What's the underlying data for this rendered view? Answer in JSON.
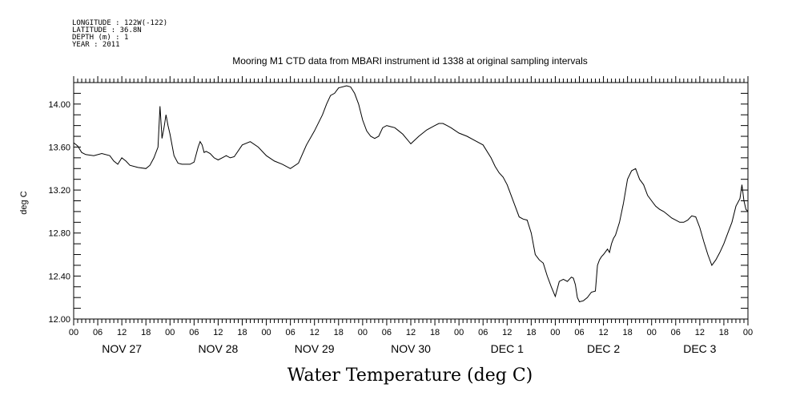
{
  "meta": {
    "longitude": "LONGITUDE : 122W(-122)",
    "latitude": "LATITUDE : 36.8N",
    "depth": "DEPTH (m) : 1",
    "year": "YEAR : 2011"
  },
  "chart_data": {
    "type": "line",
    "title": "Mooring M1 CTD data from MBARI instrument id 1338 at original sampling intervals",
    "xlabel": "Water Temperature (deg C)",
    "ylabel": "deg C",
    "xlim": [
      0,
      168
    ],
    "ylim": [
      12.0,
      14.2
    ],
    "yticks": [
      12.0,
      12.4,
      12.8,
      13.2,
      13.6,
      14.0
    ],
    "ytick_labels": [
      "12.00",
      "12.40",
      "12.80",
      "13.20",
      "13.60",
      "14.00"
    ],
    "xtick_hour_labels": [
      "00",
      "06",
      "12",
      "18",
      "00",
      "06",
      "12",
      "18",
      "00",
      "06",
      "12",
      "18",
      "00",
      "06",
      "12",
      "18",
      "00",
      "06",
      "12",
      "18",
      "00",
      "06",
      "12",
      "18",
      "00",
      "06",
      "12",
      "18",
      "00"
    ],
    "day_labels": [
      {
        "hour": 12,
        "label": "NOV 27"
      },
      {
        "hour": 36,
        "label": "NOV 28"
      },
      {
        "hour": 60,
        "label": "NOV 29"
      },
      {
        "hour": 84,
        "label": "NOV 30"
      },
      {
        "hour": 108,
        "label": "DEC  1"
      },
      {
        "hour": 132,
        "label": "DEC  2"
      },
      {
        "hour": 156,
        "label": "DEC  3"
      }
    ],
    "grid": false,
    "series": [
      {
        "x": [
          0,
          1,
          2,
          3,
          5,
          7,
          9,
          10,
          11,
          12,
          13,
          14,
          16,
          18,
          19,
          20,
          21,
          21.5,
          22,
          22.5,
          23,
          23.5,
          24,
          25,
          26,
          27,
          28,
          29,
          30,
          31,
          31.5,
          32,
          32.5,
          33,
          34,
          35,
          36,
          37,
          38,
          39,
          40,
          42,
          44,
          46,
          48,
          50,
          52,
          54,
          56,
          58,
          60,
          62,
          63,
          64,
          65,
          66,
          68,
          69,
          70,
          71,
          72,
          73,
          74,
          75,
          76,
          77,
          78,
          79,
          80,
          81,
          82,
          84,
          86,
          88,
          90,
          91,
          92,
          93,
          94,
          96,
          98,
          100,
          102,
          104,
          105,
          106,
          107,
          108,
          109,
          110,
          111,
          112,
          113,
          114,
          115,
          116,
          117,
          118,
          119,
          120,
          121,
          122,
          123,
          124,
          124.5,
          125,
          125.5,
          126,
          127,
          128,
          129,
          130,
          130.5,
          131,
          131.5,
          132,
          133,
          133.5,
          134,
          134.5,
          135,
          136,
          137,
          138,
          139,
          140,
          141,
          142,
          143,
          144,
          145,
          146,
          147,
          148,
          149,
          150,
          151,
          152,
          153,
          154,
          155,
          156,
          157,
          158,
          159,
          160,
          161,
          162,
          163,
          164,
          165,
          166,
          166.5,
          167,
          167.5,
          168
        ],
        "y": [
          13.64,
          13.61,
          13.55,
          13.53,
          13.52,
          13.54,
          13.52,
          13.47,
          13.44,
          13.5,
          13.47,
          13.43,
          13.41,
          13.4,
          13.43,
          13.5,
          13.6,
          13.98,
          13.68,
          13.78,
          13.9,
          13.8,
          13.72,
          13.52,
          13.45,
          13.44,
          13.44,
          13.44,
          13.46,
          13.6,
          13.65,
          13.62,
          13.55,
          13.56,
          13.54,
          13.5,
          13.48,
          13.5,
          13.52,
          13.5,
          13.51,
          13.62,
          13.65,
          13.6,
          13.52,
          13.47,
          13.44,
          13.4,
          13.45,
          13.62,
          13.75,
          13.9,
          14.0,
          14.08,
          14.1,
          14.15,
          14.17,
          14.16,
          14.1,
          14.0,
          13.85,
          13.75,
          13.7,
          13.68,
          13.7,
          13.78,
          13.8,
          13.79,
          13.78,
          13.75,
          13.72,
          13.63,
          13.7,
          13.76,
          13.8,
          13.82,
          13.82,
          13.8,
          13.78,
          13.73,
          13.7,
          13.66,
          13.62,
          13.5,
          13.42,
          13.36,
          13.32,
          13.25,
          13.15,
          13.05,
          12.95,
          12.93,
          12.92,
          12.8,
          12.6,
          12.55,
          12.52,
          12.4,
          12.3,
          12.21,
          12.35,
          12.37,
          12.35,
          12.39,
          12.38,
          12.32,
          12.2,
          12.16,
          12.17,
          12.2,
          12.25,
          12.26,
          12.5,
          12.55,
          12.58,
          12.6,
          12.65,
          12.62,
          12.7,
          12.75,
          12.78,
          12.9,
          13.08,
          13.3,
          13.38,
          13.4,
          13.3,
          13.25,
          13.15,
          13.1,
          13.05,
          13.02,
          13.0,
          12.97,
          12.94,
          12.92,
          12.9,
          12.9,
          12.92,
          12.96,
          12.95,
          12.85,
          12.72,
          12.6,
          12.5,
          12.55,
          12.62,
          12.7,
          12.8,
          12.9,
          13.05,
          13.12,
          13.25,
          13.1,
          13.02,
          13.0
        ]
      }
    ]
  }
}
